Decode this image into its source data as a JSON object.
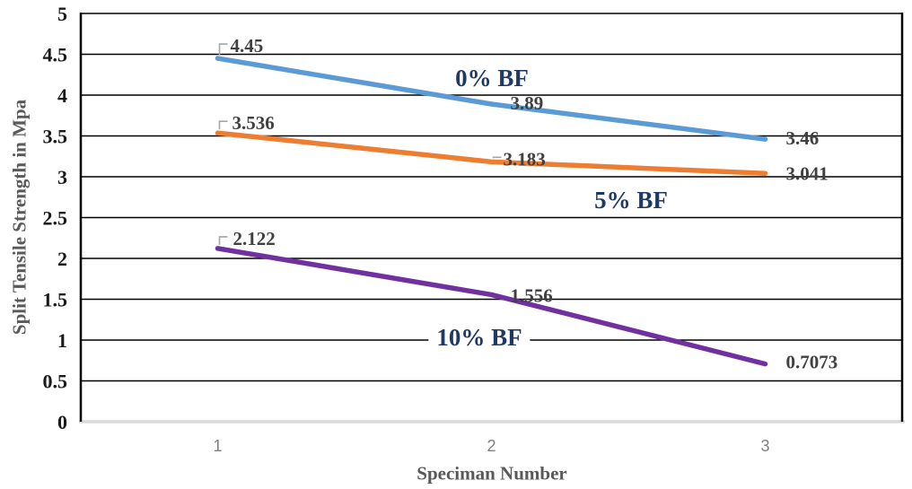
{
  "chart_data": {
    "type": "line",
    "title": "",
    "xlabel": "Speciman Number",
    "ylabel": "Split Tensile Strength in Mpa",
    "x_categories": [
      "1",
      "2",
      "3"
    ],
    "ylim": [
      0,
      5
    ],
    "ytick_step": 0.5,
    "yticks": [
      "0",
      "0.5",
      "1",
      "1.5",
      "2",
      "2.5",
      "3",
      "3.5",
      "4",
      "4.5",
      "5"
    ],
    "grid": "horizontal",
    "legend_position": "none",
    "series": [
      {
        "name": "0% BF",
        "color": "#5B9BD5",
        "values": [
          4.45,
          3.89,
          3.46
        ],
        "labels": [
          "4.45",
          "3.89",
          "3.46"
        ]
      },
      {
        "name": "5% BF",
        "color": "#ED7D31",
        "values": [
          3.536,
          3.183,
          3.041
        ],
        "labels": [
          "3.536",
          "3.183",
          "3.041"
        ]
      },
      {
        "name": "10% BF",
        "color": "#7030A0",
        "values": [
          2.122,
          1.556,
          0.7073
        ],
        "labels": [
          "2.122",
          "1.556",
          "0.7073"
        ]
      }
    ],
    "colors": {
      "annotation_text": "#1F3864",
      "gridline": "#000000",
      "axis_line": "#000000",
      "baseline": "#D9D9D9",
      "data_label": "#404040",
      "y_tick_label": "#1A1A1A",
      "x_tick_label": "#7F7F7F",
      "axis_title": "#595959",
      "leader_line": "#A6A6A6",
      "background": "#FFFFFF"
    }
  }
}
